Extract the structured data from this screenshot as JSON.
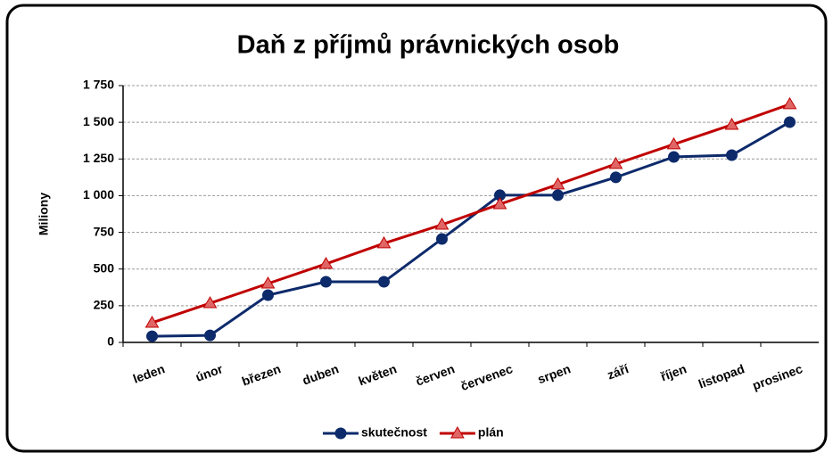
{
  "chart_data": {
    "type": "line",
    "title": "Daň z příjmů právnických osob",
    "y_label": "Miliony",
    "categories": [
      "leden",
      "únor",
      "březen",
      "duben",
      "květen",
      "červen",
      "červenec",
      "srpen",
      "září",
      "říjen",
      "listopad",
      "prosinec"
    ],
    "series": [
      {
        "name": "skutečnost",
        "color": "#0d2a6b",
        "marker": "circle",
        "values": [
          42,
          48,
          322,
          413,
          413,
          705,
          1003,
          1003,
          1125,
          1264,
          1276,
          1501
        ]
      },
      {
        "name": "plán",
        "color": "#c00000",
        "marker": "triangle",
        "values": [
          134,
          267,
          401,
          535,
          675,
          802,
          942,
          1076,
          1216,
          1350,
          1483,
          1623
        ]
      }
    ],
    "ylim": [
      0,
      1750
    ],
    "yticks": [
      0,
      250,
      500,
      750,
      {
        "value": 1000,
        "label": "1 000"
      },
      {
        "value": 1250,
        "label": "1 250"
      },
      {
        "value": 1500,
        "label": "1 500"
      },
      {
        "value": 1750,
        "label": "1 750"
      }
    ],
    "grid": true,
    "legend": "bottom"
  }
}
